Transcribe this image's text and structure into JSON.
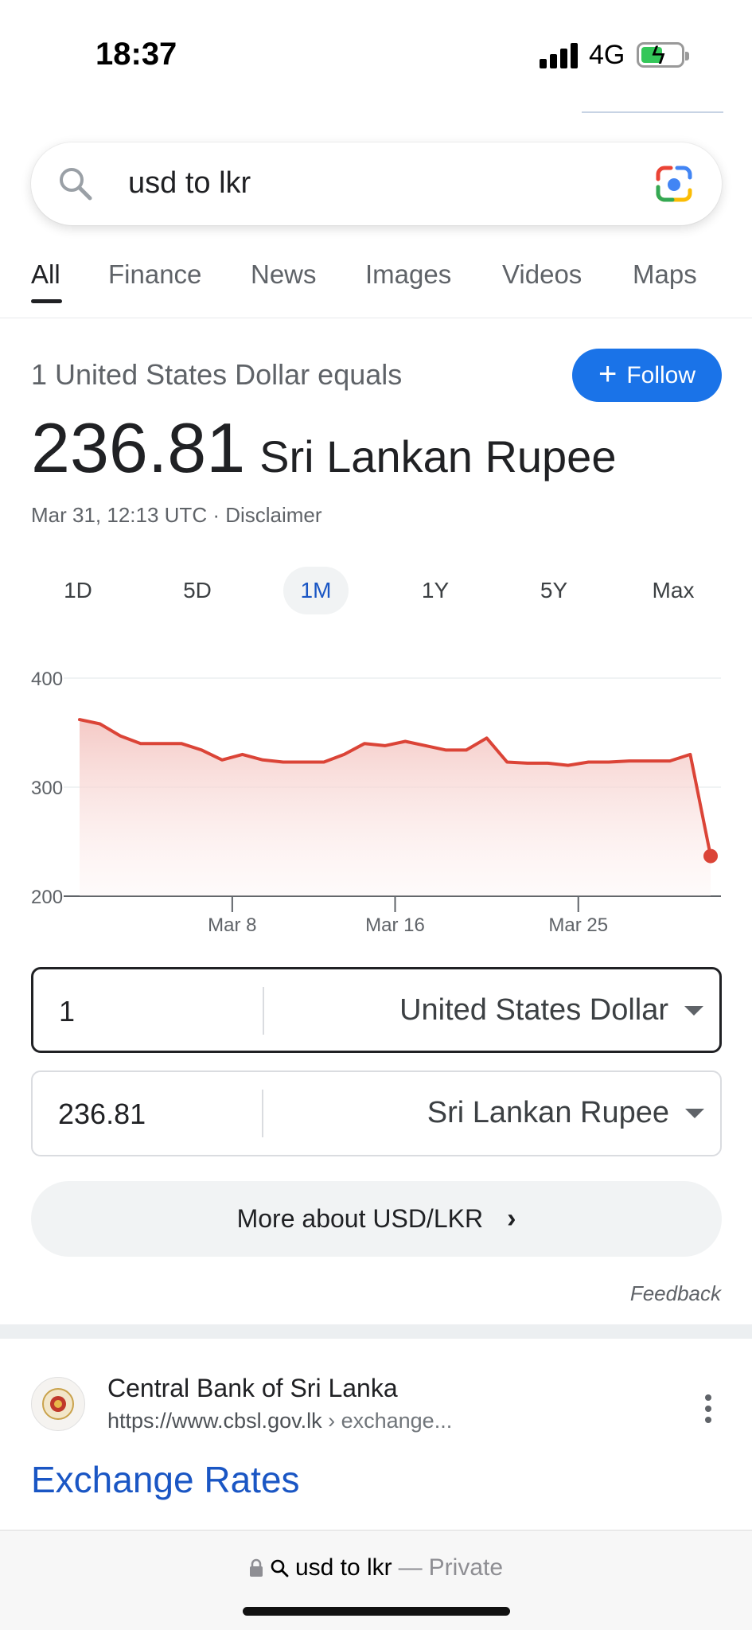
{
  "status_bar": {
    "time": "18:37",
    "network": "4G"
  },
  "search": {
    "query": "usd to lkr"
  },
  "tabs": [
    {
      "label": "All",
      "active": true
    },
    {
      "label": "Finance",
      "active": false
    },
    {
      "label": "News",
      "active": false
    },
    {
      "label": "Images",
      "active": false
    },
    {
      "label": "Videos",
      "active": false
    },
    {
      "label": "Maps",
      "active": false
    }
  ],
  "converter": {
    "equals_label": "1 United States Dollar equals",
    "follow_label": "Follow",
    "rate": "236.81",
    "to_currency_name": "Sri Lankan Rupee",
    "timestamp": "Mar 31, 12:13 UTC · Disclaimer",
    "ranges": [
      "1D",
      "5D",
      "1M",
      "1Y",
      "5Y",
      "Max"
    ],
    "active_range": "1M",
    "from_amount": "1",
    "from_currency": "United States Dollar",
    "to_amount": "236.81",
    "to_currency": "Sri Lankan Rupee",
    "more_label": "More about USD/LKR",
    "feedback_label": "Feedback"
  },
  "chart_data": {
    "type": "area",
    "y_ticks": [
      "400",
      "300",
      "200"
    ],
    "ylim": [
      200,
      400
    ],
    "x_ticks": [
      "Mar 8",
      "Mar 16",
      "Mar 25"
    ],
    "x_tick_positions": [
      7.5,
      15.5,
      24.5
    ],
    "x": [
      0,
      1,
      2,
      3,
      4,
      5,
      6,
      7,
      8,
      9,
      10,
      11,
      12,
      13,
      14,
      15,
      16,
      17,
      18,
      19,
      20,
      21,
      22,
      23,
      24,
      25,
      26,
      27,
      28,
      29,
      30,
      31
    ],
    "values": [
      362,
      358,
      347,
      340,
      340,
      340,
      334,
      325,
      330,
      325,
      323,
      323,
      323,
      330,
      340,
      338,
      342,
      338,
      334,
      334,
      345,
      323,
      322,
      322,
      320,
      323,
      323,
      324,
      324,
      324,
      330,
      236.81
    ],
    "line_color": "#db4437",
    "grid": true
  },
  "result": {
    "site_name": "Central Bank of Sri Lanka",
    "url": "https://www.cbsl.gov.lk",
    "url_crumb": "› exchange...",
    "title": "Exchange Rates"
  },
  "bottom_bar": {
    "query": "usd to lkr",
    "separator": "—",
    "private_label": "Private"
  }
}
